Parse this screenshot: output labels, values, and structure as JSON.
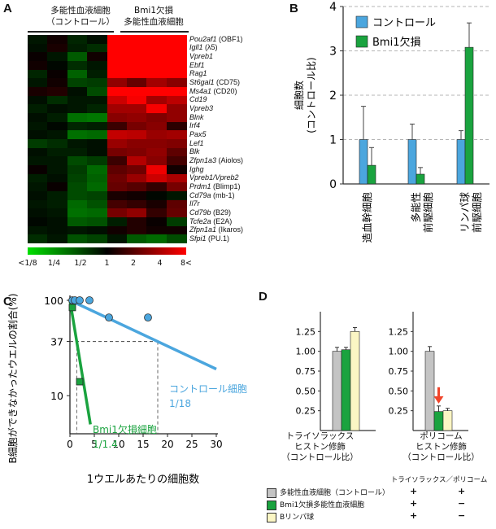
{
  "panel_letters": {
    "a": "A",
    "b": "B",
    "c": "C",
    "d": "D"
  },
  "panel_a": {
    "group_headers": {
      "control_line1": "多能性血液細胞",
      "control_line2": "（コントロール）",
      "bmi1_line1": "Bmi1欠損",
      "bmi1_line2": "多能性血液細胞"
    },
    "genes": [
      {
        "name": "Pou2af1",
        "alias": " (OBF1)"
      },
      {
        "name": "Igll1",
        "alias": " (λ5)"
      },
      {
        "name": "Vpreb1",
        "alias": ""
      },
      {
        "name": "Ebf1",
        "alias": ""
      },
      {
        "name": "Rag1",
        "alias": ""
      },
      {
        "name": "St6gal1",
        "alias": " (CD75)"
      },
      {
        "name": "Ms4a1",
        "alias": " (CD20)"
      },
      {
        "name": "Cd19",
        "alias": ""
      },
      {
        "name": "Vpreb3",
        "alias": ""
      },
      {
        "name": "Blnk",
        "alias": ""
      },
      {
        "name": "Irf4",
        "alias": ""
      },
      {
        "name": "Pax5",
        "alias": ""
      },
      {
        "name": "Lef1",
        "alias": ""
      },
      {
        "name": "Blk",
        "alias": ""
      },
      {
        "name": "Zfpn1a3",
        "alias": " (Aiolos)"
      },
      {
        "name": "Ighg",
        "alias": ""
      },
      {
        "name": "Vpreb1/Vpreb2",
        "alias": ""
      },
      {
        "name": "Prdm1",
        "alias": " (Blimp1)"
      },
      {
        "name": "Cd79a",
        "alias": " (mb-1)"
      },
      {
        "name": "Il7r",
        "alias": ""
      },
      {
        "name": "Cd79b",
        "alias": " (B29)"
      },
      {
        "name": "Tcfe2a",
        "alias": " (E2A)"
      },
      {
        "name": "Zfpn1a1",
        "alias": " (Ikaros)"
      },
      {
        "name": "Sfpi1",
        "alias": " (PU.1)"
      }
    ],
    "heatmap_log2": [
      [
        -0.3,
        0.2,
        -0.5,
        -0.2,
        3,
        3,
        3,
        3
      ],
      [
        -0.2,
        0.3,
        -0.4,
        -0.6,
        3,
        3,
        3,
        3
      ],
      [
        0.1,
        -0.3,
        -1.2,
        0.2,
        3,
        3,
        3,
        3
      ],
      [
        0.2,
        -0.1,
        -0.6,
        -0.3,
        3,
        3,
        3,
        3
      ],
      [
        -0.5,
        0.1,
        -1.3,
        -0.4,
        3,
        3,
        3,
        3
      ],
      [
        -0.3,
        0.2,
        -0.9,
        -0.8,
        1.7,
        1.2,
        1.9,
        1.6
      ],
      [
        0.3,
        0.4,
        -0.2,
        -1.0,
        3,
        3,
        3,
        3
      ],
      [
        -0.2,
        -0.6,
        -0.3,
        -0.3,
        2.4,
        2.9,
        1.9,
        2.2
      ],
      [
        -0.4,
        -0.2,
        -0.3,
        -0.5,
        1.9,
        1.9,
        2.9,
        1.7
      ],
      [
        -0.2,
        -0.4,
        -1.5,
        -1.6,
        1.6,
        1.7,
        1.5,
        1.7
      ],
      [
        -0.3,
        -0.1,
        -0.5,
        -0.4,
        0.7,
        1.4,
        1.6,
        0.5
      ],
      [
        -0.2,
        -0.3,
        -1.5,
        -1.4,
        2.3,
        2.2,
        1.8,
        1.9
      ],
      [
        -0.8,
        -0.6,
        -0.3,
        -0.2,
        1.8,
        1.6,
        1.6,
        1.5
      ],
      [
        -0.2,
        -0.4,
        -0.4,
        -0.2,
        1.4,
        1.5,
        1.7,
        1.1
      ],
      [
        -0.3,
        -0.3,
        -1.0,
        -0.8,
        0.7,
        2.1,
        1.6,
        0.8
      ],
      [
        0.1,
        -0.3,
        -0.8,
        -1.4,
        1.1,
        1.3,
        2.8,
        0.2
      ],
      [
        -0.4,
        -0.2,
        -0.9,
        -1.3,
        1.3,
        1.8,
        2.4,
        2.0
      ],
      [
        -0.3,
        0.1,
        -1.0,
        -1.4,
        1.2,
        1.0,
        0.6,
        1.4
      ],
      [
        -0.2,
        -0.4,
        -1.0,
        -0.9,
        0.3,
        0.2,
        -0.1,
        -0.3
      ],
      [
        -0.3,
        -0.4,
        -1.4,
        -1.1,
        0.8,
        0.6,
        0.3,
        1.1
      ],
      [
        -0.2,
        -0.3,
        -1.5,
        -1.4,
        1.4,
        1.7,
        0.6,
        1.2
      ],
      [
        -0.1,
        -0.2,
        -1.2,
        -1.1,
        -0.4,
        0.4,
        0.1,
        -0.8
      ],
      [
        -0.3,
        -0.2,
        -0.3,
        -0.2,
        0.2,
        0.4,
        0.2,
        0.2
      ],
      [
        -0.6,
        -0.3,
        -1.1,
        -0.9,
        -0.3,
        -1.2,
        -1.4,
        -1.0
      ]
    ],
    "scale_labels": [
      "<1/8",
      "1/4",
      "1/2",
      "1",
      "2",
      "4",
      "8<"
    ],
    "colors": {
      "low": "#00e000",
      "mid": "#000000",
      "high": "#ff0000"
    }
  },
  "chart_data": [
    {
      "type": "bar",
      "panel": "B",
      "categories": [
        "造血幹細胞",
        "多能性\n前駆細胞",
        "リンパ球\n前駆細胞"
      ],
      "series": [
        {
          "name": "コントロール",
          "values": [
            1.0,
            1.0,
            1.0
          ],
          "errors": [
            0.75,
            0.35,
            0.2
          ],
          "color": "#4ba6de"
        },
        {
          "name": "Bmi1欠損",
          "values": [
            0.42,
            0.22,
            3.08
          ],
          "errors": [
            0.4,
            0.15,
            0.55
          ],
          "color": "#1aa33f"
        }
      ],
      "xlabel": "",
      "ylabel": "細胞数\n(コントロール比)",
      "ylim": [
        0,
        4
      ],
      "yticks": [
        "0",
        "1",
        "2",
        "3",
        "4"
      ],
      "grid": "dashed",
      "legend": "top-right"
    },
    {
      "type": "scatter",
      "panel": "C",
      "xlabel": "1ウエルあたりの細胞数",
      "ylabel": "B細胞ができなかったウエルの割合(%)",
      "x_ticks": [
        "0",
        "5",
        "10",
        "15",
        "20",
        "25",
        "30"
      ],
      "y_ticks": [
        "100",
        "37",
        "10"
      ],
      "xlim": [
        0,
        30
      ],
      "y_scale": "log",
      "series": [
        {
          "name": "コントロール細胞",
          "frequency": "1/18",
          "color": "#4ba6de",
          "points": [
            {
              "x": 0.5,
              "y": 100
            },
            {
              "x": 1,
              "y": 100
            },
            {
              "x": 2,
              "y": 100
            },
            {
              "x": 4,
              "y": 100
            },
            {
              "x": 8,
              "y": 66
            },
            {
              "x": 16,
              "y": 66
            }
          ],
          "fit": [
            {
              "x": 0,
              "y": 100
            },
            {
              "x": 30,
              "y": 19
            }
          ]
        },
        {
          "name": "Bmi1欠損細胞",
          "frequency": "1/1.4",
          "color": "#1aa33f",
          "points": [
            {
              "x": 0.5,
              "y": 84
            },
            {
              "x": 2,
              "y": 14
            }
          ],
          "fit": [
            {
              "x": 0,
              "y": 100
            },
            {
              "x": 4.2,
              "y": 5
            }
          ]
        }
      ],
      "reference": {
        "y": 37,
        "x_control": 18,
        "x_bmi1": 1.4
      }
    },
    {
      "type": "bar",
      "panel": "D",
      "groups": [
        {
          "label_line1": "トライソラックス",
          "label_line2": "ヒストン修飾",
          "label_line3": "（コントロール比）",
          "values": [
            1.0,
            1.02,
            1.25
          ],
          "errors": [
            0.05,
            0.03,
            0.05
          ]
        },
        {
          "label_line1": "ポリコーム",
          "label_line2": "ヒストン修飾",
          "label_line3": "（コントロール比）",
          "values": [
            1.0,
            0.24,
            0.25
          ],
          "errors": [
            0.06,
            0.07,
            0.03
          ]
        }
      ],
      "series_colors": [
        "#c4c4c4",
        "#1aa33f",
        "#fbf6c4"
      ],
      "yticks": [
        "0",
        "0.25",
        "0.50",
        "0.75",
        "1.00",
        "1.25",
        "1.50"
      ],
      "ylim": [
        0,
        1.5
      ],
      "arrow_color": "#f0442a"
    }
  ],
  "panel_d_legend": {
    "header": "トライソラックス／ポリコーム",
    "rows": [
      {
        "label": "多能性血液細胞（コントロール）",
        "color": "#c4c4c4",
        "mark1": "+",
        "mark2": "+"
      },
      {
        "label": "Bmi1欠損多能性血液細胞",
        "color": "#1aa33f",
        "mark1": "+",
        "mark2": "−"
      },
      {
        "label": "Bリンパ球",
        "color": "#fbf6c4",
        "mark1": "+",
        "mark2": "−"
      }
    ]
  },
  "panel_c_labels": {
    "control_name": "コントロール細胞",
    "control_freq": "1/18",
    "bmi1_name": "Bmi1欠損細胞",
    "bmi1_freq": "1/1.4"
  }
}
